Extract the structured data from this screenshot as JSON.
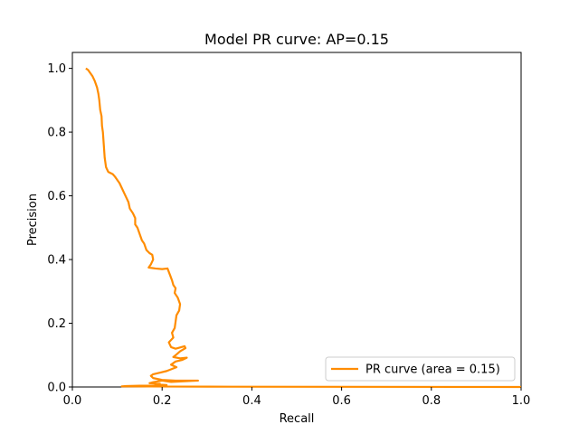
{
  "chart_data": {
    "type": "line",
    "title": "Model PR curve: AP=0.15",
    "xlabel": "Recall",
    "ylabel": "Precision",
    "xlim": [
      0.0,
      1.0
    ],
    "ylim": [
      0.0,
      1.05
    ],
    "xticks": [
      0.0,
      0.2,
      0.4,
      0.6,
      0.8,
      1.0
    ],
    "yticks": [
      0.0,
      0.2,
      0.4,
      0.6,
      0.8,
      1.0
    ],
    "xtick_labels": [
      "0.0",
      "0.2",
      "0.4",
      "0.6",
      "0.8",
      "1.0"
    ],
    "ytick_labels": [
      "0.0",
      "0.2",
      "0.4",
      "0.6",
      "0.8",
      "1.0"
    ],
    "grid": false,
    "legend_position": "lower-right",
    "series": [
      {
        "name": "PR curve (area = 0.15)",
        "color": "#ff8c00",
        "points": [
          [
            0.03,
            1.0
          ],
          [
            0.035,
            0.995
          ],
          [
            0.04,
            0.985
          ],
          [
            0.045,
            0.975
          ],
          [
            0.05,
            0.96
          ],
          [
            0.055,
            0.94
          ],
          [
            0.058,
            0.92
          ],
          [
            0.06,
            0.9
          ],
          [
            0.062,
            0.87
          ],
          [
            0.065,
            0.85
          ],
          [
            0.066,
            0.82
          ],
          [
            0.068,
            0.8
          ],
          [
            0.07,
            0.76
          ],
          [
            0.072,
            0.72
          ],
          [
            0.075,
            0.69
          ],
          [
            0.08,
            0.675
          ],
          [
            0.09,
            0.668
          ],
          [
            0.095,
            0.66
          ],
          [
            0.1,
            0.65
          ],
          [
            0.105,
            0.64
          ],
          [
            0.11,
            0.625
          ],
          [
            0.115,
            0.61
          ],
          [
            0.12,
            0.595
          ],
          [
            0.125,
            0.58
          ],
          [
            0.128,
            0.56
          ],
          [
            0.135,
            0.545
          ],
          [
            0.14,
            0.53
          ],
          [
            0.14,
            0.51
          ],
          [
            0.145,
            0.5
          ],
          [
            0.15,
            0.48
          ],
          [
            0.155,
            0.46
          ],
          [
            0.16,
            0.45
          ],
          [
            0.165,
            0.43
          ],
          [
            0.172,
            0.42
          ],
          [
            0.178,
            0.415
          ],
          [
            0.18,
            0.4
          ],
          [
            0.175,
            0.385
          ],
          [
            0.17,
            0.375
          ],
          [
            0.185,
            0.372
          ],
          [
            0.2,
            0.37
          ],
          [
            0.212,
            0.372
          ],
          [
            0.218,
            0.35
          ],
          [
            0.222,
            0.335
          ],
          [
            0.225,
            0.32
          ],
          [
            0.23,
            0.31
          ],
          [
            0.228,
            0.295
          ],
          [
            0.235,
            0.28
          ],
          [
            0.24,
            0.26
          ],
          [
            0.238,
            0.24
          ],
          [
            0.232,
            0.225
          ],
          [
            0.23,
            0.205
          ],
          [
            0.228,
            0.185
          ],
          [
            0.222,
            0.17
          ],
          [
            0.225,
            0.155
          ],
          [
            0.215,
            0.14
          ],
          [
            0.22,
            0.125
          ],
          [
            0.23,
            0.12
          ],
          [
            0.25,
            0.128
          ],
          [
            0.252,
            0.122
          ],
          [
            0.24,
            0.112
          ],
          [
            0.232,
            0.102
          ],
          [
            0.225,
            0.094
          ],
          [
            0.24,
            0.09
          ],
          [
            0.255,
            0.092
          ],
          [
            0.245,
            0.085
          ],
          [
            0.23,
            0.08
          ],
          [
            0.22,
            0.07
          ],
          [
            0.232,
            0.062
          ],
          [
            0.21,
            0.05
          ],
          [
            0.195,
            0.045
          ],
          [
            0.18,
            0.04
          ],
          [
            0.175,
            0.035
          ],
          [
            0.18,
            0.028
          ],
          [
            0.2,
            0.022
          ],
          [
            0.23,
            0.02
          ],
          [
            0.26,
            0.02
          ],
          [
            0.28,
            0.02
          ],
          [
            0.25,
            0.018
          ],
          [
            0.22,
            0.016
          ],
          [
            0.2,
            0.02
          ],
          [
            0.18,
            0.015
          ],
          [
            0.172,
            0.012
          ],
          [
            0.195,
            0.01
          ],
          [
            0.185,
            0.008
          ],
          [
            0.21,
            0.006
          ],
          [
            0.2,
            0.004
          ],
          [
            0.15,
            0.004
          ],
          [
            0.12,
            0.003
          ],
          [
            0.11,
            0.002
          ],
          [
            0.3,
            0.001
          ],
          [
            0.6,
            0.0005
          ],
          [
            1.0,
            0.0
          ]
        ]
      }
    ]
  }
}
